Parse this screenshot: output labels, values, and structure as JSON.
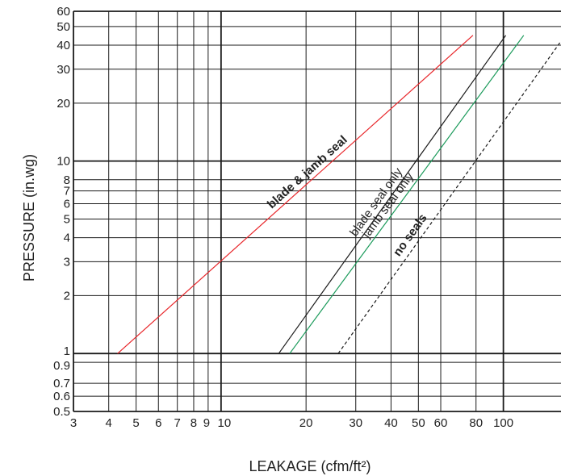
{
  "chart_data": {
    "type": "line",
    "xlabel": "LEAKAGE (cfm/ft²)",
    "ylabel": "PRESSURE (in.wg)",
    "x_scale": "log",
    "y_scale": "log",
    "xlim": [
      3,
      160
    ],
    "ylim": [
      0.5,
      60
    ],
    "grid": true,
    "x_ticks": [
      3,
      4,
      5,
      6,
      7,
      8,
      9,
      10,
      20,
      30,
      40,
      50,
      60,
      80,
      100
    ],
    "x_tick_labels": [
      "3",
      "4",
      "5",
      "6",
      "7",
      "8",
      "9",
      "10",
      "20",
      "30",
      "40",
      "50",
      "60",
      "80",
      "100"
    ],
    "y_ticks": [
      0.5,
      0.6,
      0.7,
      0.9,
      1,
      2,
      3,
      4,
      5,
      6,
      7,
      8,
      10,
      20,
      30,
      40,
      50,
      60
    ],
    "y_tick_labels": [
      "0.5",
      "0.6",
      "0.7",
      "0.9",
      "1",
      "2",
      "3",
      "4",
      "5",
      "6",
      "7",
      "8",
      "10",
      "20",
      "30",
      "40",
      "50",
      "60"
    ],
    "series": [
      {
        "name": "blade & jamb seal",
        "color": "#e8262a",
        "dash": "solid",
        "bold": true,
        "x": [
          4.3,
          78
        ],
        "y": [
          1,
          45
        ]
      },
      {
        "name": "blade seal only",
        "color": "#1a1a1a",
        "dash": "solid",
        "bold": false,
        "x": [
          16,
          102
        ],
        "y": [
          1,
          45
        ]
      },
      {
        "name": "jamb seal only",
        "color": "#1a9a5a",
        "dash": "solid",
        "bold": false,
        "x": [
          17.5,
          118
        ],
        "y": [
          1,
          45
        ]
      },
      {
        "name": "no seals",
        "color": "#1a1a1a",
        "dash": "dashed",
        "bold": true,
        "x": [
          26,
          160
        ],
        "y": [
          1,
          42
        ]
      }
    ]
  }
}
